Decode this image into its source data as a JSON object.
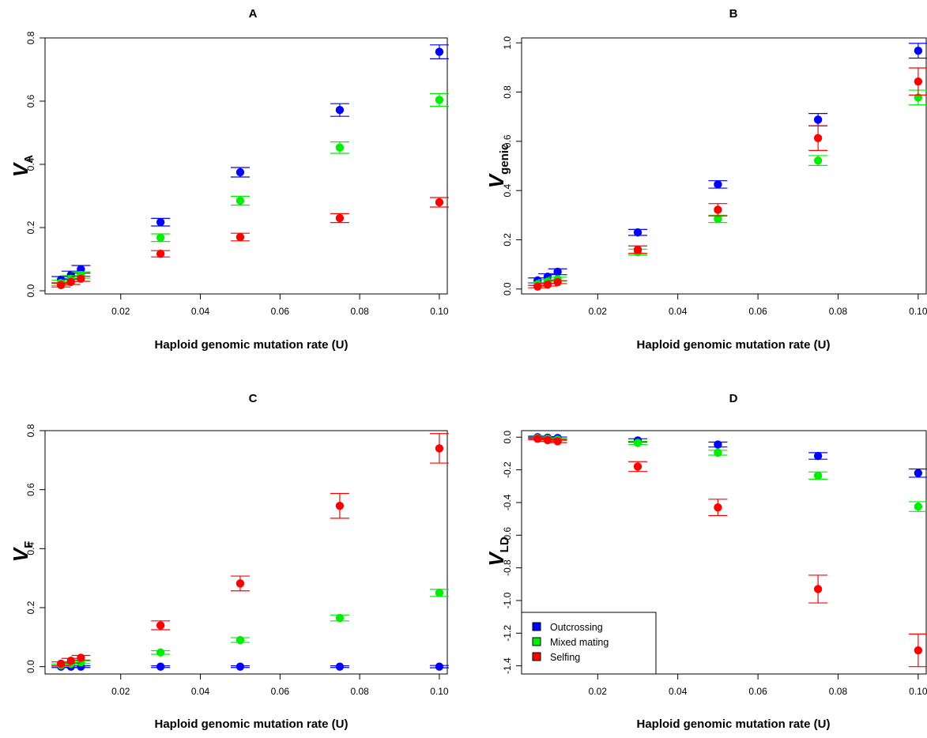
{
  "colors": {
    "outcrossing": "#0000ff",
    "mixed": "#00ee00",
    "selfing": "#ff0000"
  },
  "legend": {
    "panel": 3,
    "placement": "bottom-left",
    "items": [
      {
        "label": "Outcrossing",
        "color": "#0000ff"
      },
      {
        "label": "Mixed mating",
        "color": "#00ee00"
      },
      {
        "label": "Selfing",
        "color": "#ff0000"
      }
    ]
  },
  "chart_data": [
    {
      "type": "scatter",
      "title": "A",
      "xlabel": "Haploid genomic mutation rate (U)",
      "ylabel_main": "V",
      "ylabel_sub": "A",
      "xlim": [
        0.001,
        0.102
      ],
      "ylim": [
        -0.01,
        0.8
      ],
      "xticks": [
        0.02,
        0.04,
        0.06,
        0.08,
        0.1
      ],
      "xtick_labels": [
        "0.02",
        "0.04",
        "0.06",
        "0.08",
        "0.10"
      ],
      "yticks": [
        0.0,
        0.2,
        0.4,
        0.6,
        0.8
      ],
      "ytick_labels": [
        "0.0",
        "0.2",
        "0.4",
        "0.6",
        "0.8"
      ],
      "series": [
        {
          "color": "#0000ff",
          "x": [
            0.005,
            0.0075,
            0.01,
            0.03,
            0.05,
            0.075,
            0.1
          ],
          "y": [
            0.035,
            0.05,
            0.068,
            0.217,
            0.375,
            0.572,
            0.756
          ],
          "err": [
            0.01,
            0.012,
            0.012,
            0.012,
            0.015,
            0.02,
            0.022
          ]
        },
        {
          "color": "#00ee00",
          "x": [
            0.005,
            0.0075,
            0.01,
            0.03,
            0.05,
            0.075,
            0.1
          ],
          "y": [
            0.025,
            0.038,
            0.05,
            0.168,
            0.285,
            0.453,
            0.604
          ],
          "err": [
            0.008,
            0.01,
            0.01,
            0.012,
            0.014,
            0.018,
            0.02
          ]
        },
        {
          "color": "#ff0000",
          "x": [
            0.005,
            0.0075,
            0.01,
            0.03,
            0.05,
            0.075,
            0.1
          ],
          "y": [
            0.018,
            0.028,
            0.038,
            0.117,
            0.17,
            0.23,
            0.28
          ],
          "err": [
            0.006,
            0.008,
            0.008,
            0.01,
            0.012,
            0.014,
            0.015
          ]
        }
      ]
    },
    {
      "type": "scatter",
      "title": "B",
      "xlabel": "Haploid genomic mutation rate (U)",
      "ylabel_main": "V",
      "ylabel_sub": "genic",
      "xlim": [
        0.001,
        0.102
      ],
      "ylim": [
        -0.02,
        1.02
      ],
      "xticks": [
        0.02,
        0.04,
        0.06,
        0.08,
        0.1
      ],
      "xtick_labels": [
        "0.02",
        "0.04",
        "0.06",
        "0.08",
        "0.10"
      ],
      "yticks": [
        0.0,
        0.2,
        0.4,
        0.6,
        0.8,
        1.0
      ],
      "ytick_labels": [
        "0.0",
        "0.2",
        "0.4",
        "0.6",
        "0.8",
        "1.0"
      ],
      "series": [
        {
          "color": "#0000ff",
          "x": [
            0.005,
            0.0075,
            0.01,
            0.03,
            0.05,
            0.075,
            0.1
          ],
          "y": [
            0.035,
            0.05,
            0.07,
            0.23,
            0.425,
            0.688,
            0.968
          ],
          "err": [
            0.01,
            0.012,
            0.012,
            0.012,
            0.015,
            0.025,
            0.03
          ]
        },
        {
          "color": "#00ee00",
          "x": [
            0.005,
            0.0075,
            0.01,
            0.03,
            0.05,
            0.075,
            0.1
          ],
          "y": [
            0.02,
            0.03,
            0.04,
            0.15,
            0.285,
            0.522,
            0.778
          ],
          "err": [
            0.006,
            0.008,
            0.008,
            0.012,
            0.015,
            0.02,
            0.03
          ]
        },
        {
          "color": "#ff0000",
          "x": [
            0.005,
            0.0075,
            0.01,
            0.03,
            0.05,
            0.075,
            0.1
          ],
          "y": [
            0.01,
            0.018,
            0.028,
            0.16,
            0.322,
            0.613,
            0.843
          ],
          "err": [
            0.005,
            0.006,
            0.006,
            0.015,
            0.025,
            0.05,
            0.055
          ]
        }
      ]
    },
    {
      "type": "scatter",
      "title": "C",
      "xlabel": "Haploid genomic mutation rate (U)",
      "ylabel_main": "V",
      "ylabel_sub": "F",
      "xlim": [
        0.001,
        0.102
      ],
      "ylim": [
        -0.025,
        0.8
      ],
      "xticks": [
        0.02,
        0.04,
        0.06,
        0.08,
        0.1
      ],
      "xtick_labels": [
        "0.02",
        "0.04",
        "0.06",
        "0.08",
        "0.10"
      ],
      "yticks": [
        0.0,
        0.2,
        0.4,
        0.6,
        0.8
      ],
      "ytick_labels": [
        "0.0",
        "0.2",
        "0.4",
        "0.6",
        "0.8"
      ],
      "series": [
        {
          "color": "#0000ff",
          "x": [
            0.005,
            0.0075,
            0.01,
            0.03,
            0.05,
            0.075,
            0.1
          ],
          "y": [
            0.0,
            0.0,
            0.0,
            0.0,
            0.0,
            0.0,
            0.0
          ],
          "err": [
            0.003,
            0.003,
            0.003,
            0.003,
            0.003,
            0.003,
            0.004
          ]
        },
        {
          "color": "#00ee00",
          "x": [
            0.005,
            0.0075,
            0.01,
            0.03,
            0.05,
            0.075,
            0.1
          ],
          "y": [
            0.005,
            0.01,
            0.015,
            0.048,
            0.09,
            0.165,
            0.25
          ],
          "err": [
            0.004,
            0.005,
            0.005,
            0.006,
            0.008,
            0.01,
            0.012
          ]
        },
        {
          "color": "#ff0000",
          "x": [
            0.005,
            0.0075,
            0.01,
            0.03,
            0.05,
            0.075,
            0.1
          ],
          "y": [
            0.01,
            0.02,
            0.03,
            0.14,
            0.282,
            0.545,
            0.74
          ],
          "err": [
            0.006,
            0.008,
            0.008,
            0.015,
            0.025,
            0.042,
            0.05
          ]
        }
      ]
    },
    {
      "type": "scatter",
      "title": "D",
      "xlabel": "Haploid genomic mutation rate (U)",
      "ylabel_main": "V",
      "ylabel_sub": "LD",
      "xlim": [
        0.001,
        0.102
      ],
      "ylim": [
        -1.45,
        0.04
      ],
      "xticks": [
        0.02,
        0.04,
        0.06,
        0.08,
        0.1
      ],
      "xtick_labels": [
        "0.02",
        "0.04",
        "0.06",
        "0.08",
        "0.10"
      ],
      "yticks": [
        0.0,
        -0.2,
        -0.4,
        -0.6,
        -0.8,
        -1.0,
        -1.2,
        -1.4
      ],
      "ytick_labels": [
        "0.0",
        "-0.2",
        "-0.4",
        "-0.6",
        "-0.8",
        "-1.0",
        "-1.2",
        "-1.4"
      ],
      "series": [
        {
          "color": "#0000ff",
          "x": [
            0.005,
            0.0075,
            0.01,
            0.03,
            0.05,
            0.075,
            0.1
          ],
          "y": [
            0.0,
            -0.003,
            -0.005,
            -0.02,
            -0.045,
            -0.115,
            -0.22
          ],
          "err": [
            0.006,
            0.006,
            0.006,
            0.01,
            0.015,
            0.02,
            0.025
          ]
        },
        {
          "color": "#00ee00",
          "x": [
            0.005,
            0.0075,
            0.01,
            0.03,
            0.05,
            0.075,
            0.1
          ],
          "y": [
            -0.005,
            -0.01,
            -0.015,
            -0.035,
            -0.095,
            -0.235,
            -0.425
          ],
          "err": [
            0.006,
            0.006,
            0.006,
            0.01,
            0.015,
            0.022,
            0.03
          ]
        },
        {
          "color": "#ff0000",
          "x": [
            0.005,
            0.0075,
            0.01,
            0.03,
            0.05,
            0.075,
            0.1
          ],
          "y": [
            -0.01,
            -0.018,
            -0.025,
            -0.18,
            -0.43,
            -0.93,
            -1.305
          ],
          "err": [
            0.006,
            0.008,
            0.008,
            0.03,
            0.05,
            0.085,
            0.1
          ]
        }
      ]
    }
  ]
}
